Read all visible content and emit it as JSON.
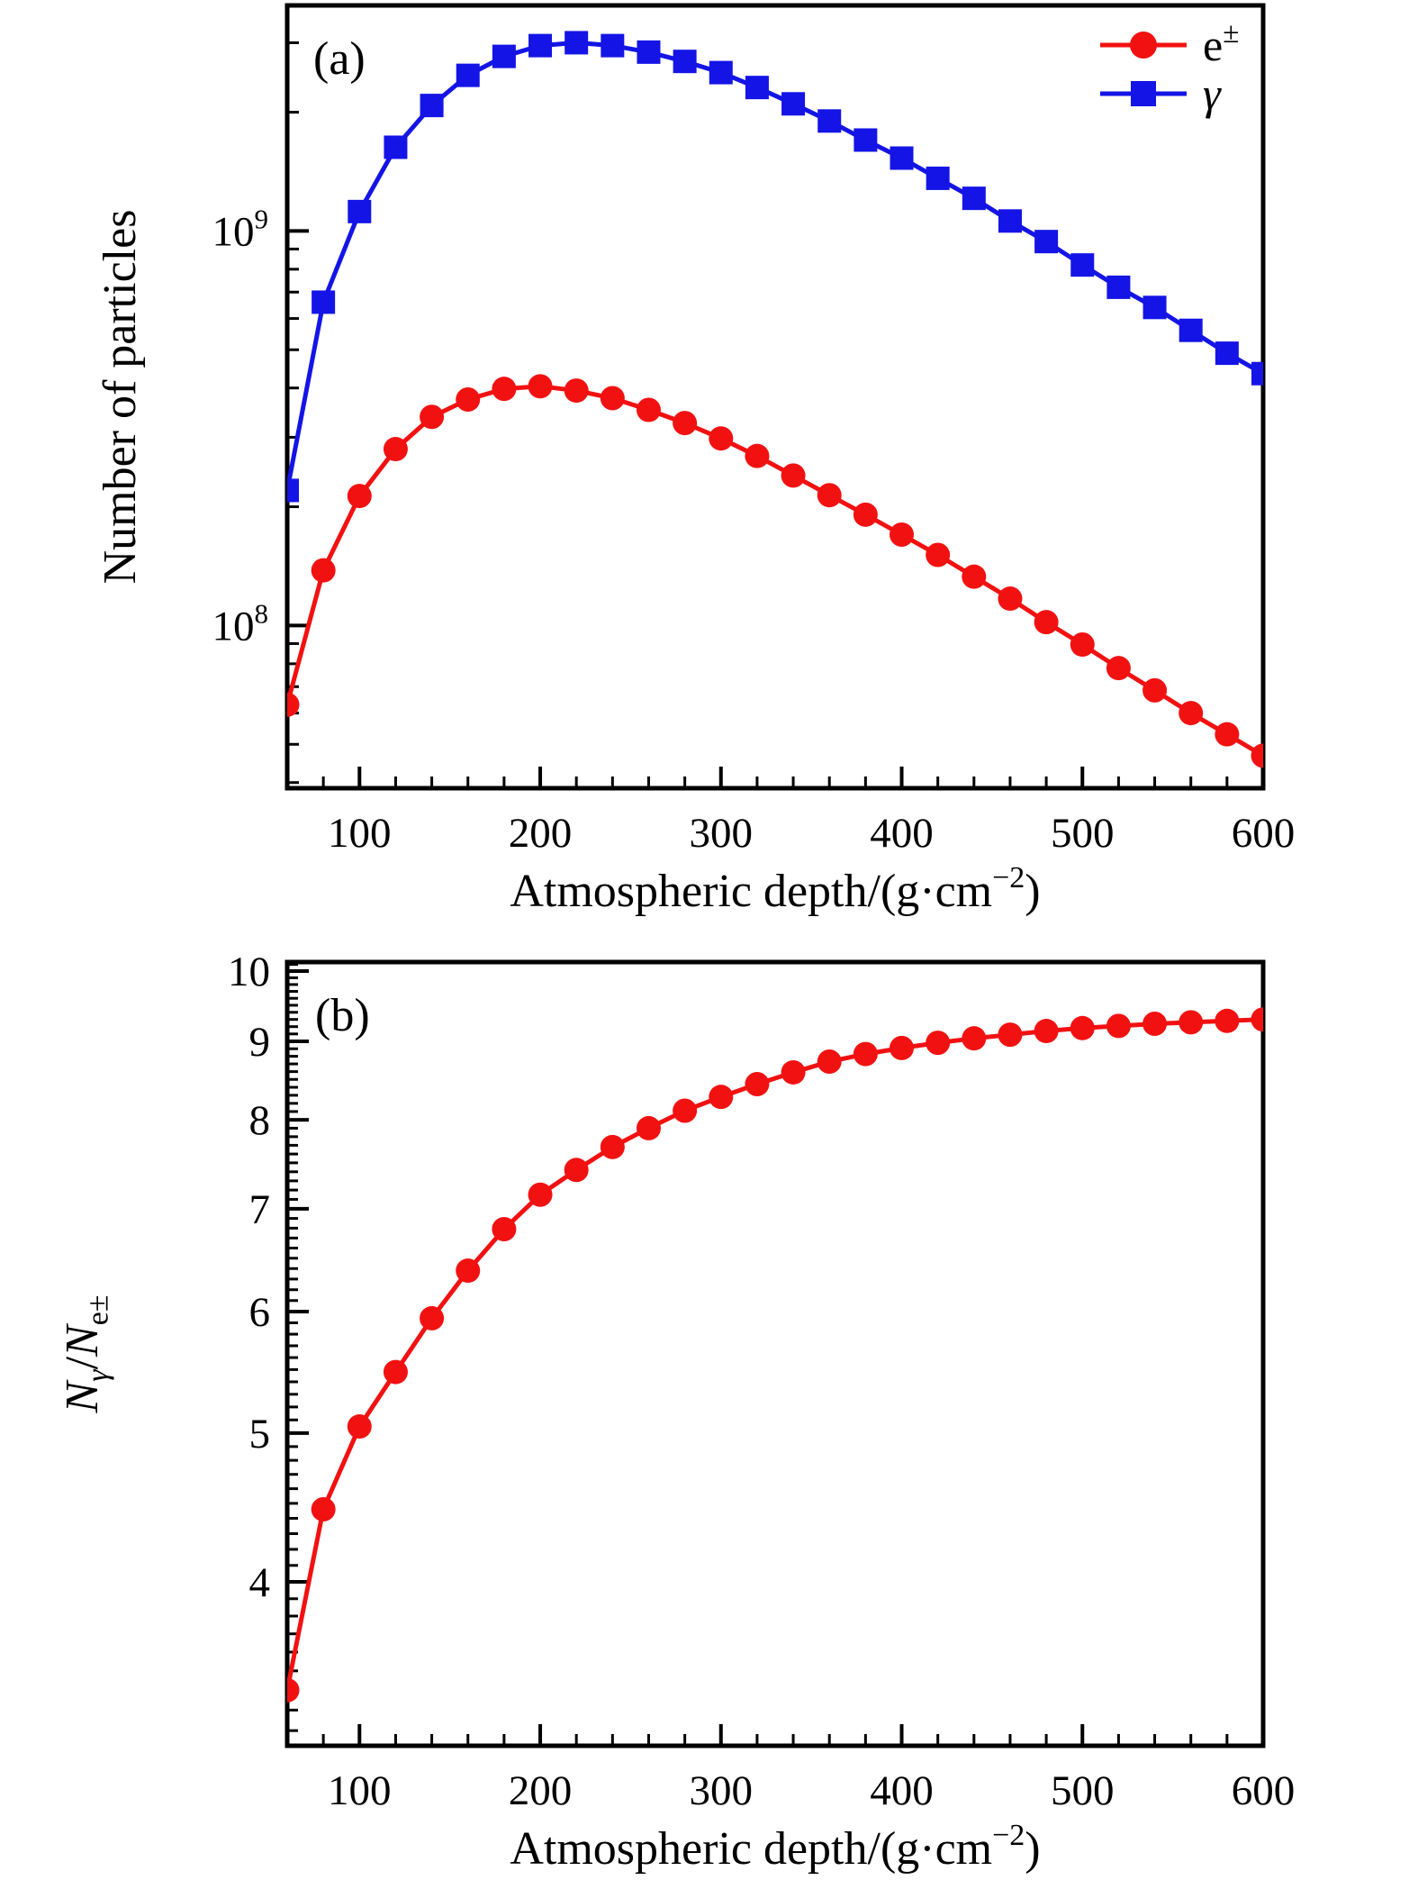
{
  "figure": {
    "background": "#ffffff",
    "axis_color": "#000000"
  },
  "chart_data": [
    {
      "id": "a",
      "type": "line",
      "panel_label": "(a)",
      "xlabel": "Atmospheric depth/(g·cm−2)",
      "xlabel_rich": [
        {
          "text": "Atmospheric depth/(g·cm"
        },
        {
          "text": "−2",
          "sup": true
        },
        {
          "text": ")"
        }
      ],
      "ylabel": "Number of particles",
      "x_range": [
        60,
        600
      ],
      "x_major_ticks": [
        100,
        200,
        300,
        400,
        500,
        600
      ],
      "x_minor_step": 20,
      "y_scale": "log",
      "y_range": [
        38700000.0,
        3730000000.0
      ],
      "y_minor_mode": "log",
      "y_major_ticks": [
        {
          "value": 100000000.0,
          "label": "10^8",
          "label_rich": [
            {
              "text": "10"
            },
            {
              "text": "8",
              "sup": true
            }
          ]
        },
        {
          "value": 1000000000.0,
          "label": "10^9",
          "label_rich": [
            {
              "text": "10"
            },
            {
              "text": "9",
              "sup": true
            }
          ]
        }
      ],
      "grid": false,
      "legend": true,
      "legend_position": "top-right",
      "x": [
        60,
        80,
        100,
        120,
        140,
        160,
        180,
        200,
        220,
        240,
        260,
        280,
        300,
        320,
        340,
        360,
        380,
        400,
        420,
        440,
        460,
        480,
        500,
        520,
        540,
        560,
        580,
        600
      ],
      "series": [
        {
          "key": "electron-positron",
          "label": "e±",
          "label_rich": [
            {
              "text": "e"
            },
            {
              "text": "±",
              "sup": true
            }
          ],
          "color": "#f21111",
          "marker": "circle",
          "values": [
            63000000.0,
            138000000.0,
            213000000.0,
            280000000.0,
            338000000.0,
            374000000.0,
            398000000.0,
            404000000.0,
            394000000.0,
            377000000.0,
            352000000.0,
            326000000.0,
            298000000.0,
            269000000.0,
            240000000.0,
            214000000.0,
            191000000.0,
            170000000.0,
            151000000.0,
            133000000.0,
            117000000.0,
            102000000.0,
            89500000.0,
            78000000.0,
            68500000.0,
            60000000.0,
            53000000.0,
            46800000.0
          ]
        },
        {
          "key": "gamma",
          "label": "γ",
          "label_rich": [
            {
              "text": "γ",
              "italic": true
            }
          ],
          "color": "#1414e6",
          "marker": "square",
          "values": [
            220000000.0,
            660000000.0,
            1120000000.0,
            1630000000.0,
            2080000000.0,
            2480000000.0,
            2770000000.0,
            2950000000.0,
            3000000000.0,
            2950000000.0,
            2840000000.0,
            2690000000.0,
            2520000000.0,
            2310000000.0,
            2100000000.0,
            1900000000.0,
            1700000000.0,
            1530000000.0,
            1360000000.0,
            1210000000.0,
            1060000000.0,
            940000000.0,
            820000000.0,
            720000000.0,
            640000000.0,
            560000000.0,
            490000000.0,
            435000000.0
          ]
        }
      ]
    },
    {
      "id": "b",
      "type": "line",
      "panel_label": "(b)",
      "xlabel": "Atmospheric depth/(g·cm−2)",
      "xlabel_rich": [
        {
          "text": "Atmospheric depth/(g·cm"
        },
        {
          "text": "−2",
          "sup": true
        },
        {
          "text": ")"
        }
      ],
      "ylabel": "Nγ/Ne±",
      "ylabel_rich": [
        {
          "text": "N",
          "italic": true
        },
        {
          "text": "γ",
          "sub": true,
          "italic": true
        },
        {
          "text": "/"
        },
        {
          "text": "N",
          "italic": true
        },
        {
          "text": "e±",
          "sub": true
        }
      ],
      "x_range": [
        60,
        600
      ],
      "x_major_ticks": [
        100,
        200,
        300,
        400,
        500,
        600
      ],
      "x_minor_step": 20,
      "y_scale": "log",
      "y_range": [
        3.128,
        10.136
      ],
      "y_minor_mode": "step",
      "y_minor_step": 0.1,
      "y_major_ticks": [
        {
          "value": 4,
          "label": "4",
          "label_rich": [
            {
              "text": "4"
            }
          ]
        },
        {
          "value": 5,
          "label": "5",
          "label_rich": [
            {
              "text": "5"
            }
          ]
        },
        {
          "value": 6,
          "label": "6",
          "label_rich": [
            {
              "text": "6"
            }
          ]
        },
        {
          "value": 7,
          "label": "7",
          "label_rich": [
            {
              "text": "7"
            }
          ]
        },
        {
          "value": 8,
          "label": "8",
          "label_rich": [
            {
              "text": "8"
            }
          ]
        },
        {
          "value": 9,
          "label": "9",
          "label_rich": [
            {
              "text": "9"
            }
          ]
        },
        {
          "value": 10,
          "label": "10",
          "label_rich": [
            {
              "text": "10"
            }
          ]
        }
      ],
      "grid": false,
      "legend": false,
      "x": [
        60,
        80,
        100,
        120,
        140,
        160,
        180,
        200,
        220,
        240,
        260,
        280,
        300,
        320,
        340,
        360,
        380,
        400,
        420,
        440,
        460,
        480,
        500,
        520,
        540,
        560,
        580,
        600
      ],
      "series": [
        {
          "key": "gamma-electron-ratio",
          "color": "#f21111",
          "marker": "circle",
          "values": [
            3.4,
            4.46,
            5.05,
            5.48,
            5.94,
            6.38,
            6.79,
            7.15,
            7.42,
            7.68,
            7.9,
            8.11,
            8.28,
            8.44,
            8.59,
            8.73,
            8.83,
            8.91,
            8.98,
            9.04,
            9.09,
            9.14,
            9.18,
            9.21,
            9.24,
            9.26,
            9.28,
            9.3
          ]
        }
      ]
    }
  ]
}
